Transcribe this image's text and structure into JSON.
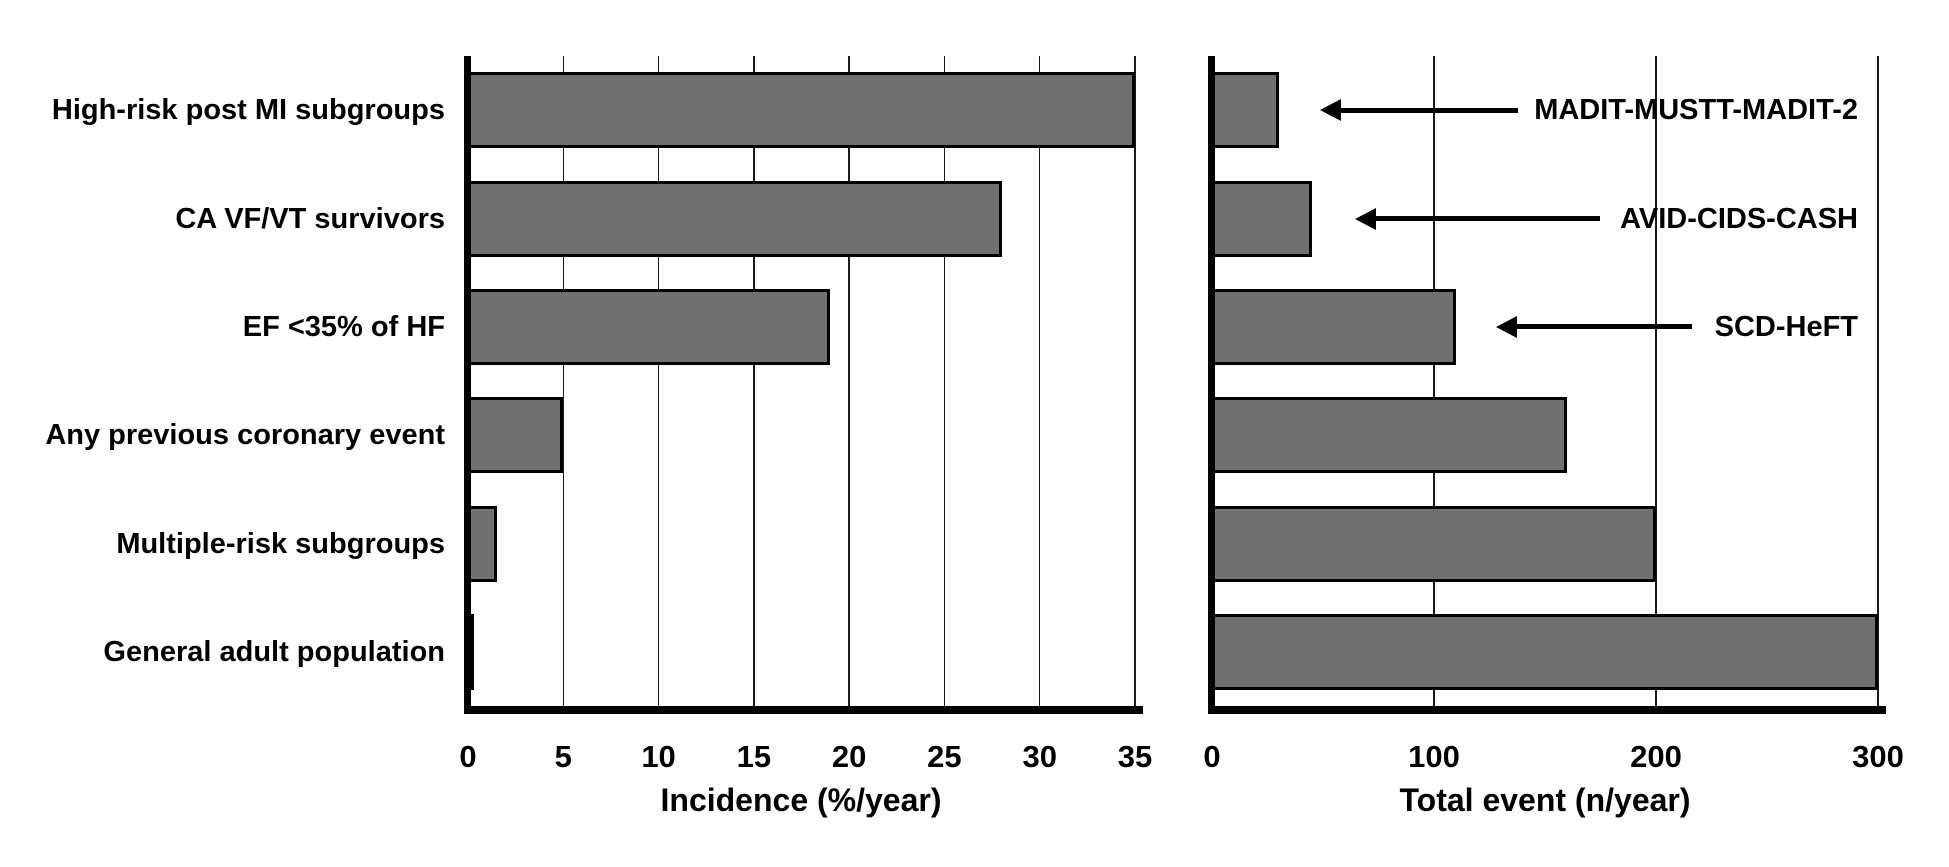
{
  "figure": {
    "background": "#ffffff",
    "bar_fill": "#707070",
    "bar_border": "#000000",
    "axis_color": "#000000",
    "gridline_color": "#1a1a1a",
    "text_color": "#000000"
  },
  "categories": [
    "High-risk post MI subgroups",
    "CA VF/VT survivors",
    "EF <35% of HF",
    "Any previous coronary event",
    "Multiple-risk subgroups",
    "General adult population"
  ],
  "chart_data": [
    {
      "type": "bar",
      "orientation": "horizontal",
      "categories": [
        "High-risk post MI subgroups",
        "CA VF/VT survivors",
        "EF <35% of HF",
        "Any previous coronary event",
        "Multiple-risk subgroups",
        "General adult population"
      ],
      "values": [
        35,
        28,
        19,
        5,
        1.5,
        0.3
      ],
      "xlabel": "Incidence (%/year)",
      "xticks": [
        0,
        5,
        10,
        15,
        20,
        25,
        30,
        35
      ],
      "xlim": [
        0,
        35
      ],
      "grid": true,
      "legend": "none"
    },
    {
      "type": "bar",
      "orientation": "horizontal",
      "categories": [
        "High-risk post MI subgroups",
        "CA VF/VT survivors",
        "EF <35% of HF",
        "Any previous coronary event",
        "Multiple-risk subgroups",
        "General adult population"
      ],
      "values": [
        30,
        45,
        110,
        160,
        200,
        300
      ],
      "xlabel": "Total event (n/year)",
      "xticks": [
        0,
        100,
        200,
        300
      ],
      "xlim": [
        0,
        300
      ],
      "grid": true,
      "legend": "none",
      "annotations": [
        {
          "label": "MADIT-MUSTT-MADIT-2",
          "row": 0
        },
        {
          "label": "AVID-CIDS-CASH",
          "row": 1
        },
        {
          "label": "SCD-HeFT",
          "row": 2
        }
      ]
    }
  ]
}
